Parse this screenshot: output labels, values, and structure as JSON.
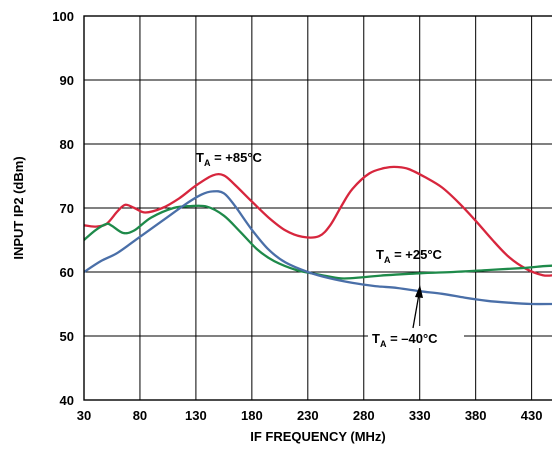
{
  "chart_data": {
    "type": "line",
    "title": "",
    "xlabel": "IF FREQUENCY (MHz)",
    "ylabel": "INPUT IP2 (dBm)",
    "xlim": [
      30,
      450
    ],
    "ylim": [
      40,
      100
    ],
    "x_ticks": [
      30,
      80,
      130,
      180,
      230,
      280,
      330,
      380,
      430
    ],
    "y_ticks": [
      40,
      50,
      60,
      70,
      80,
      90,
      100
    ],
    "grid": true,
    "series": [
      {
        "name": "+85°C",
        "color": "#d7263d",
        "points": [
          [
            30,
            67.3
          ],
          [
            40,
            67.1
          ],
          [
            50,
            67.5
          ],
          [
            60,
            69.5
          ],
          [
            67,
            70.5
          ],
          [
            75,
            70.0
          ],
          [
            85,
            69.3
          ],
          [
            100,
            70.0
          ],
          [
            115,
            71.5
          ],
          [
            130,
            73.5
          ],
          [
            145,
            75.1
          ],
          [
            155,
            75.1
          ],
          [
            165,
            73.6
          ],
          [
            180,
            71.0
          ],
          [
            195,
            68.5
          ],
          [
            210,
            66.5
          ],
          [
            225,
            65.5
          ],
          [
            240,
            65.6
          ],
          [
            250,
            67.3
          ],
          [
            260,
            70.3
          ],
          [
            270,
            73.0
          ],
          [
            285,
            75.4
          ],
          [
            300,
            76.3
          ],
          [
            310,
            76.4
          ],
          [
            320,
            76.1
          ],
          [
            335,
            74.8
          ],
          [
            350,
            73.2
          ],
          [
            365,
            70.8
          ],
          [
            380,
            68.0
          ],
          [
            395,
            65.0
          ],
          [
            410,
            62.3
          ],
          [
            425,
            60.5
          ],
          [
            440,
            59.5
          ],
          [
            450,
            59.5
          ]
        ]
      },
      {
        "name": "+25°C",
        "color": "#1e8a4a",
        "points": [
          [
            30,
            65.0
          ],
          [
            40,
            66.5
          ],
          [
            50,
            67.5
          ],
          [
            55,
            67.2
          ],
          [
            65,
            66.1
          ],
          [
            75,
            66.5
          ],
          [
            90,
            68.5
          ],
          [
            110,
            70.0
          ],
          [
            125,
            70.3
          ],
          [
            140,
            70.2
          ],
          [
            155,
            68.8
          ],
          [
            170,
            66.2
          ],
          [
            185,
            63.5
          ],
          [
            200,
            61.7
          ],
          [
            220,
            60.3
          ],
          [
            240,
            59.6
          ],
          [
            260,
            59.0
          ],
          [
            280,
            59.2
          ],
          [
            300,
            59.5
          ],
          [
            330,
            59.8
          ],
          [
            360,
            60.0
          ],
          [
            390,
            60.3
          ],
          [
            420,
            60.6
          ],
          [
            440,
            60.9
          ],
          [
            450,
            61.0
          ]
        ]
      },
      {
        "name": "–40°C",
        "color": "#4a6fa8",
        "points": [
          [
            30,
            60.0
          ],
          [
            45,
            61.7
          ],
          [
            60,
            63.0
          ],
          [
            80,
            65.5
          ],
          [
            100,
            68.0
          ],
          [
            120,
            70.5
          ],
          [
            135,
            72.1
          ],
          [
            145,
            72.6
          ],
          [
            155,
            72.3
          ],
          [
            165,
            70.3
          ],
          [
            180,
            66.6
          ],
          [
            195,
            63.5
          ],
          [
            210,
            61.5
          ],
          [
            230,
            60.0
          ],
          [
            250,
            59.0
          ],
          [
            270,
            58.3
          ],
          [
            290,
            57.8
          ],
          [
            310,
            57.5
          ],
          [
            330,
            57.0
          ],
          [
            350,
            56.6
          ],
          [
            370,
            56.0
          ],
          [
            390,
            55.5
          ],
          [
            410,
            55.2
          ],
          [
            430,
            55.0
          ],
          [
            450,
            55.0
          ]
        ]
      }
    ],
    "annotations": [
      {
        "label_main": "T",
        "label_sub": "A",
        "label_rest": " = +85°C",
        "series": "+85°C"
      },
      {
        "label_main": "T",
        "label_sub": "A",
        "label_rest": " = +25°C",
        "series": "+25°C"
      },
      {
        "label_main": "T",
        "label_sub": "A",
        "label_rest": " = –40°C",
        "series": "–40°C"
      }
    ]
  }
}
